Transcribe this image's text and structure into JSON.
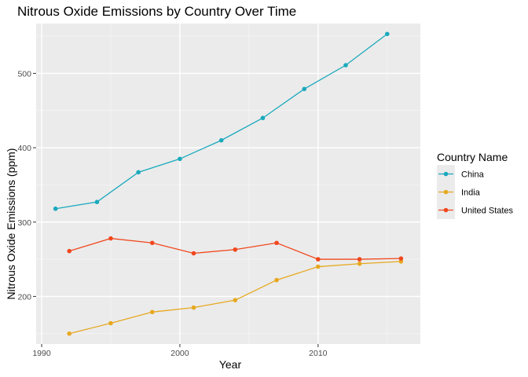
{
  "chart_data": {
    "type": "line",
    "title": "Nitrous Oxide Emissions by Country Over Time",
    "xlabel": "Year",
    "ylabel": "Nitrous Oxide Emissions (ppm)",
    "xlim": [
      1989.6,
      2017.4
    ],
    "ylim": [
      136,
      567
    ],
    "x_ticks": [
      1990,
      2000,
      2010
    ],
    "x_tick_labels": [
      "1990",
      "2000",
      "2010"
    ],
    "y_ticks": [
      200,
      300,
      400,
      500
    ],
    "y_tick_labels": [
      "200",
      "300",
      "400",
      "500"
    ],
    "grid": true,
    "legend": {
      "title": "Country Name",
      "position": "right"
    },
    "series": [
      {
        "name": "China",
        "color": "#1aa9bd",
        "points": [
          [
            1991,
            318
          ],
          [
            1994,
            327
          ],
          [
            1997,
            367
          ],
          [
            2000,
            385
          ],
          [
            2003,
            410
          ],
          [
            2006,
            440
          ],
          [
            2009,
            479
          ],
          [
            2012,
            511
          ],
          [
            2015,
            553
          ]
        ]
      },
      {
        "name": "India",
        "color": "#e7a81f",
        "points": [
          [
            1992,
            150
          ],
          [
            1995,
            164
          ],
          [
            1998,
            179
          ],
          [
            2001,
            185
          ],
          [
            2004,
            195
          ],
          [
            2007,
            222
          ],
          [
            2010,
            240
          ],
          [
            2013,
            244
          ],
          [
            2016,
            247
          ]
        ]
      },
      {
        "name": "United States",
        "color": "#f1471d",
        "points": [
          [
            1992,
            261
          ],
          [
            1995,
            278
          ],
          [
            1998,
            272
          ],
          [
            2001,
            258
          ],
          [
            2004,
            263
          ],
          [
            2007,
            272
          ],
          [
            2010,
            250
          ],
          [
            2013,
            250
          ],
          [
            2016,
            251
          ]
        ]
      }
    ]
  }
}
